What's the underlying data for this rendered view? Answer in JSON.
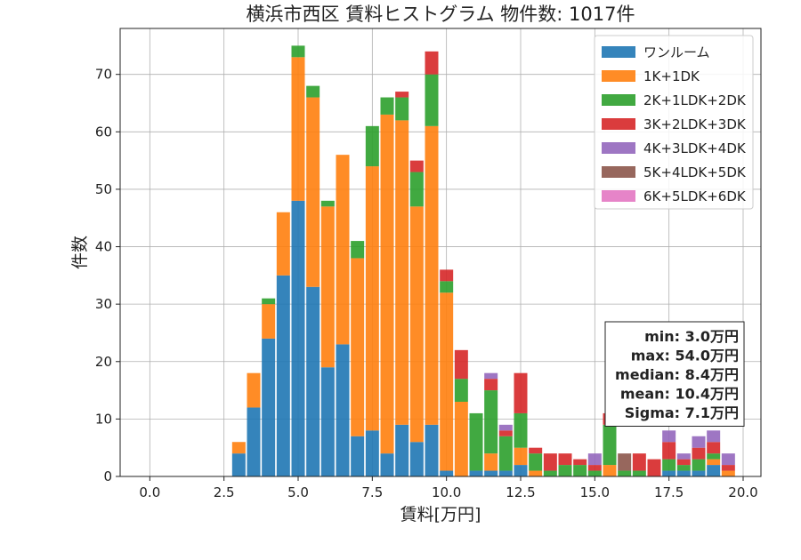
{
  "chart_data": {
    "type": "bar",
    "stacked": true,
    "title": "横浜市西区 賃料ヒストグラム 物件数: 1017件",
    "xlabel": "賃料[万円]",
    "ylabel": "件数",
    "xlim": [
      -1.0,
      20.6
    ],
    "ylim": [
      0,
      78
    ],
    "xticks": [
      "0.0",
      "2.5",
      "5.0",
      "7.5",
      "10.0",
      "12.5",
      "15.0",
      "17.5",
      "20.0"
    ],
    "yticks": [
      "0",
      "10",
      "20",
      "30",
      "40",
      "50",
      "60",
      "70"
    ],
    "grid": true,
    "legend_position": "top-right",
    "bin_width": 0.5,
    "x": [
      3.0,
      3.5,
      4.0,
      4.5,
      5.0,
      5.5,
      6.0,
      6.5,
      7.0,
      7.5,
      8.0,
      8.5,
      9.0,
      9.5,
      10.0,
      10.5,
      11.0,
      11.5,
      12.0,
      12.5,
      13.0,
      13.5,
      14.0,
      14.5,
      15.0,
      15.5,
      16.0,
      16.5,
      17.0,
      17.5,
      18.0,
      18.5,
      19.0,
      19.5
    ],
    "series": [
      {
        "name": "ワンルーム",
        "color": "#1f77b4",
        "values": [
          4,
          12,
          24,
          35,
          48,
          33,
          19,
          23,
          7,
          8,
          4,
          9,
          6,
          9,
          1,
          0,
          1,
          1,
          1,
          2,
          0,
          0,
          0,
          0,
          0,
          0,
          0,
          0,
          0,
          1,
          1,
          1,
          2,
          0
        ]
      },
      {
        "name": "1K+1DK",
        "color": "#ff7f0e",
        "values": [
          2,
          6,
          6,
          11,
          25,
          33,
          28,
          33,
          31,
          46,
          59,
          53,
          41,
          52,
          31,
          13,
          0,
          3,
          0,
          3,
          1,
          0,
          0,
          0,
          0,
          2,
          0,
          0,
          0,
          0,
          0,
          0,
          1,
          1
        ]
      },
      {
        "name": "2K+1LDK+2DK",
        "color": "#2ca02c",
        "values": [
          0,
          0,
          1,
          0,
          2,
          2,
          1,
          0,
          3,
          7,
          3,
          4,
          6,
          9,
          2,
          4,
          10,
          11,
          6,
          6,
          3,
          1,
          2,
          2,
          1,
          7,
          1,
          1,
          0,
          2,
          1,
          2,
          1,
          0
        ]
      },
      {
        "name": "3K+2LDK+3DK",
        "color": "#d62728",
        "values": [
          0,
          0,
          0,
          0,
          0,
          0,
          0,
          0,
          0,
          0,
          0,
          1,
          2,
          4,
          2,
          5,
          0,
          2,
          1,
          7,
          1,
          3,
          2,
          1,
          1,
          2,
          0,
          3,
          3,
          3,
          1,
          2,
          2,
          1
        ]
      },
      {
        "name": "4K+3LDK+4DK",
        "color": "#9467bd",
        "values": [
          0,
          0,
          0,
          0,
          0,
          0,
          0,
          0,
          0,
          0,
          0,
          0,
          0,
          0,
          0,
          0,
          0,
          1,
          1,
          0,
          0,
          0,
          0,
          0,
          2,
          0,
          0,
          0,
          0,
          2,
          1,
          2,
          2,
          2
        ]
      },
      {
        "name": "5K+4LDK+5DK",
        "color": "#8c564b",
        "values": [
          0,
          0,
          0,
          0,
          0,
          0,
          0,
          0,
          0,
          0,
          0,
          0,
          0,
          0,
          0,
          0,
          0,
          0,
          0,
          0,
          0,
          0,
          0,
          0,
          0,
          0,
          3,
          0,
          0,
          0,
          0,
          0,
          0,
          0
        ]
      },
      {
        "name": "6K+5LDK+6DK",
        "color": "#e377c2",
        "values": [
          0,
          0,
          0,
          0,
          0,
          0,
          0,
          0,
          0,
          0,
          0,
          0,
          0,
          0,
          0,
          0,
          0,
          0,
          0,
          0,
          0,
          0,
          0,
          0,
          0,
          0,
          0,
          0,
          0,
          0,
          0,
          0,
          0,
          0
        ]
      }
    ],
    "stats_box": [
      "min: 3.0万円",
      "max: 54.0万円",
      "median: 8.4万円",
      "mean: 10.4万円",
      "Sigma: 7.1万円"
    ]
  }
}
